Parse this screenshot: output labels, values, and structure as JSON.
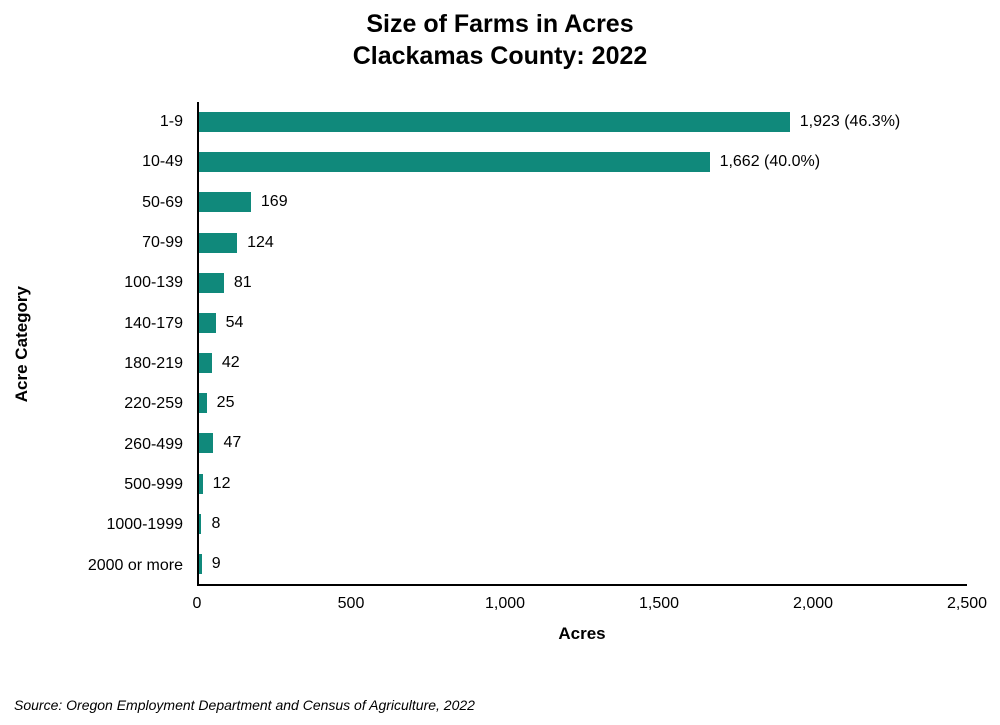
{
  "page": {
    "title_line1": "Size of Farms in Acres",
    "title_line2": "Clackamas County: 2022",
    "source": "Source: Oregon Employment Department and Census of Agriculture, 2022"
  },
  "chart_data": {
    "type": "bar",
    "orientation": "horizontal",
    "title": "Size of Farms in Acres",
    "subtitle": "Clackamas County: 2022",
    "xlabel": "Acres",
    "ylabel": "Acre Category",
    "categories": [
      "1-9",
      "10-49",
      "50-69",
      "70-99",
      "100-139",
      "140-179",
      "180-219",
      "220-259",
      "260-499",
      "500-999",
      "1000-1999",
      "2000 or more"
    ],
    "values": [
      1923,
      1662,
      169,
      124,
      81,
      54,
      42,
      25,
      47,
      12,
      8,
      9
    ],
    "value_labels": [
      "1,923 (46.3%)",
      "1,662 (40.0%)",
      "169",
      "124",
      "81",
      "54",
      "42",
      "25",
      "47",
      "12",
      "8",
      "9"
    ],
    "xlim": [
      0,
      2500
    ],
    "x_ticks": [
      "0",
      "500",
      "1,000",
      "1,500",
      "2,000",
      "2,500"
    ],
    "x_tick_values": [
      0,
      500,
      1000,
      1500,
      2000,
      2500
    ],
    "bar_color": "#10897B",
    "grid": false,
    "legend": false,
    "source": "Source: Oregon Employment Department and Census of Agriculture, 2022"
  }
}
